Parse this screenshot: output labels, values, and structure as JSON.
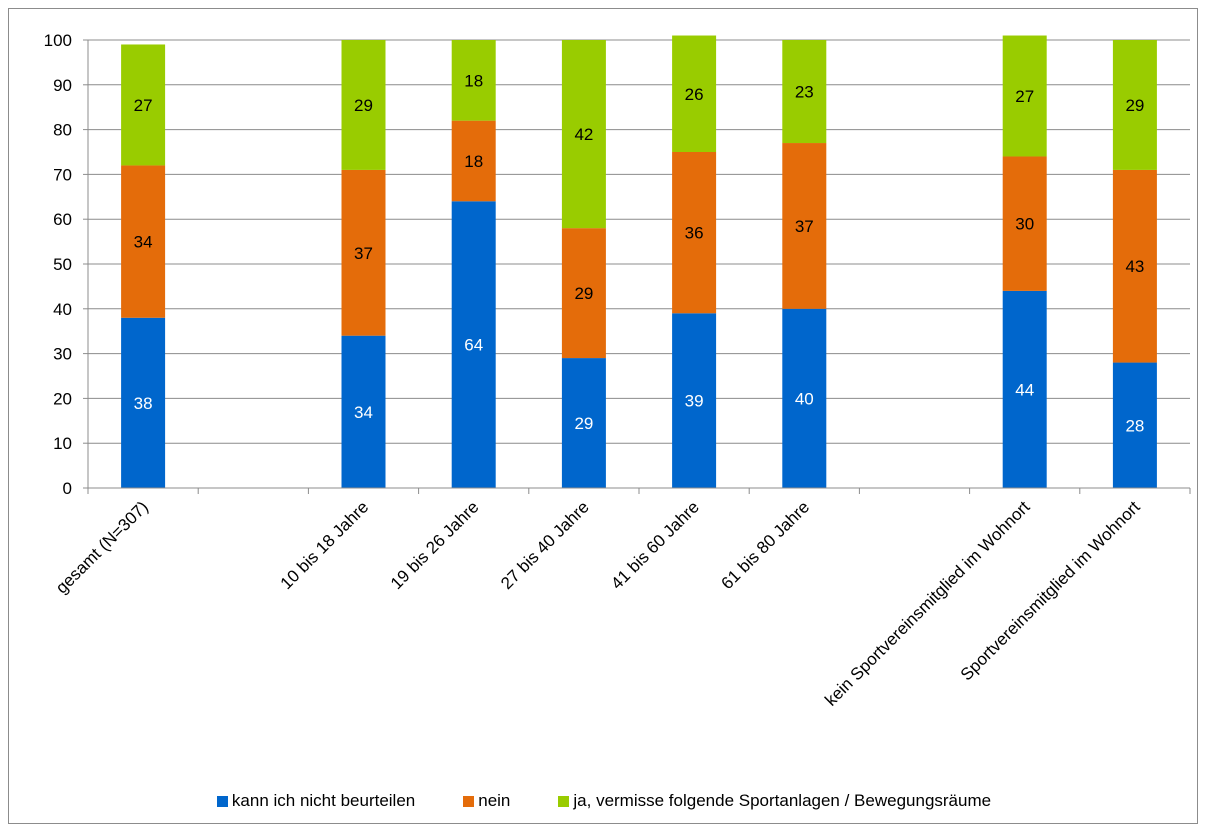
{
  "chart_data": {
    "type": "bar",
    "stacked": true,
    "categories": [
      "gesamt (N=307)",
      "",
      "10 bis 18 Jahre",
      "19 bis 26 Jahre",
      "27 bis 40 Jahre",
      "41 bis 60 Jahre",
      "61 bis 80 Jahre",
      "",
      "kein Sportvereinsmitglied im Wohnort",
      "Sportvereinsmitglied im Wohnort"
    ],
    "series": [
      {
        "name": "kann ich nicht beurteilen",
        "color": "#0066cc",
        "label_color": "#ffffff",
        "values": [
          38,
          null,
          34,
          64,
          29,
          39,
          40,
          null,
          44,
          28
        ]
      },
      {
        "name": "nein",
        "color": "#e46c0a",
        "label_color": "#000000",
        "values": [
          34,
          null,
          37,
          18,
          29,
          36,
          37,
          null,
          30,
          43
        ]
      },
      {
        "name": "ja, vermisse folgende Sportanlagen / Bewegungsräume",
        "color": "#99cc00",
        "label_color": "#000000",
        "values": [
          27,
          null,
          29,
          18,
          42,
          26,
          23,
          null,
          27,
          29
        ]
      }
    ],
    "ylim": [
      0,
      100
    ],
    "yticks": [
      0,
      10,
      20,
      30,
      40,
      50,
      60,
      70,
      80,
      90,
      100
    ],
    "grid": true,
    "legend_position": "bottom",
    "title": "",
    "xlabel": "",
    "ylabel": ""
  }
}
